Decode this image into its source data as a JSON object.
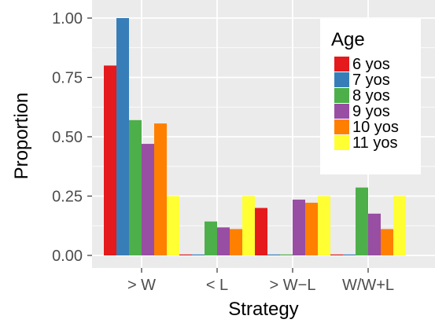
{
  "chart_data": {
    "type": "bar",
    "xlabel": "Strategy",
    "ylabel": "Proportion",
    "categories": [
      "> W",
      "< L",
      "> W−L",
      "W/W+L"
    ],
    "ylim": [
      0,
      1
    ],
    "yticks": [
      "0.00",
      "0.25",
      "0.50",
      "0.75",
      "1.00"
    ],
    "ytick_values": [
      0,
      0.25,
      0.5,
      0.75,
      1.0
    ],
    "grid": true,
    "legend": {
      "title": "Age",
      "placement": "top-right"
    },
    "series": [
      {
        "name": "6 yos",
        "color": "#e41a1c",
        "values": [
          0.8,
          0.0,
          0.2,
          0.0
        ]
      },
      {
        "name": "7 yos",
        "color": "#377eb8",
        "values": [
          1.0,
          0.0,
          0.0,
          0.0
        ]
      },
      {
        "name": "8 yos",
        "color": "#4daf4a",
        "values": [
          0.57,
          0.143,
          0.0,
          0.286
        ]
      },
      {
        "name": "9 yos",
        "color": "#984ea3",
        "values": [
          0.47,
          0.118,
          0.235,
          0.176
        ]
      },
      {
        "name": "10 yos",
        "color": "#ff7f00",
        "values": [
          0.556,
          0.111,
          0.222,
          0.111
        ]
      },
      {
        "name": "11 yos",
        "color": "#ffff33",
        "values": [
          0.25,
          0.25,
          0.25,
          0.25
        ]
      }
    ]
  }
}
